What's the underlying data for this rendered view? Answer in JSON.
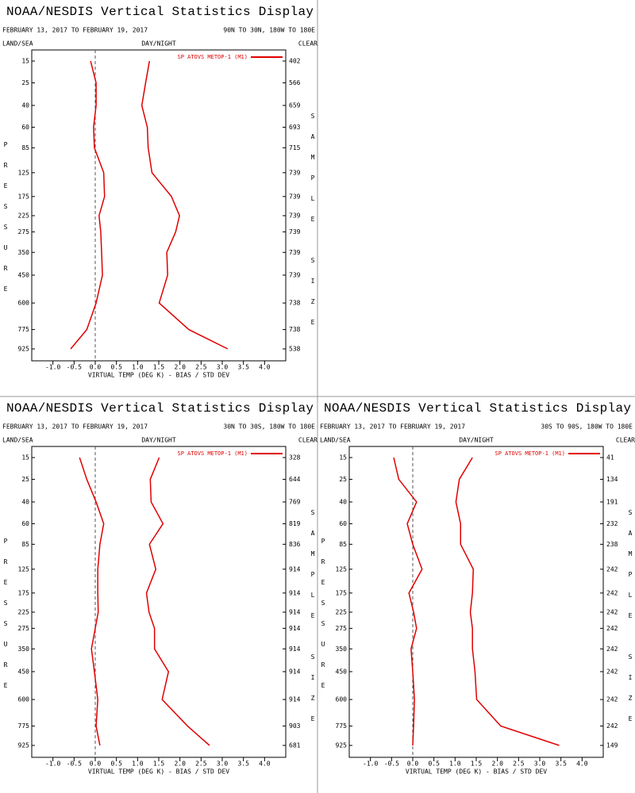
{
  "chart_data": [
    {
      "type": "profile",
      "title": "NOAA/NESDIS Vertical Statistics Display",
      "period": "FEBRUARY 13, 2017 TO FEBRUARY 19, 2017",
      "region": "90N TO 30N, 180W TO 180E",
      "land_sea": "LAND/SEA",
      "day_night": "DAY/NIGHT",
      "clear": "CLEAR",
      "legend": "SP ATOVS METOP-1 (M1)",
      "color": "#e00000",
      "y_label": "PRESSURE",
      "y2_label": "SAMPLE SIZE",
      "x_label": "VIRTUAL TEMP (DEG K) - BIAS / STD DEV",
      "levels": [
        15,
        25,
        40,
        60,
        85,
        125,
        175,
        225,
        275,
        350,
        450,
        600,
        775,
        925
      ],
      "sample_size": [
        402,
        566,
        659,
        693,
        715,
        739,
        739,
        739,
        739,
        739,
        739,
        738,
        738,
        538
      ],
      "bias": [
        -0.11,
        0.02,
        0.02,
        -0.04,
        -0.02,
        0.2,
        0.22,
        0.09,
        0.13,
        0.15,
        0.17,
        0.02,
        -0.2,
        -0.58
      ],
      "std_dev": [
        1.28,
        1.19,
        1.1,
        1.23,
        1.25,
        1.34,
        1.8,
        1.99,
        1.9,
        1.69,
        1.71,
        1.51,
        2.21,
        3.13
      ],
      "xlim": [
        -1.5,
        4.5
      ],
      "xticks": [
        {
          "value": -1.0,
          "label": "-1.0"
        },
        -0.5,
        {
          "value": 0,
          "label": "0.0"
        },
        0.5,
        {
          "value": 1,
          "label": "1.0"
        },
        1.5,
        {
          "value": 2,
          "label": "2.0"
        },
        2.5,
        {
          "value": 3,
          "label": "3.0"
        },
        3.5,
        {
          "value": 4,
          "label": "4.0"
        }
      ]
    },
    {
      "type": "profile",
      "title": "NOAA/NESDIS Vertical Statistics Display",
      "period": "FEBRUARY 13, 2017 TO FEBRUARY 19, 2017",
      "region": "30N TO 30S, 180W TO 180E",
      "land_sea": "LAND/SEA",
      "day_night": "DAY/NIGHT",
      "clear": "CLEAR",
      "legend": "SP ATOVS METOP-1 (M1)",
      "color": "#e00000",
      "y_label": "PRESSURE",
      "y2_label": "SAMPLE SIZE",
      "x_label": "VIRTUAL TEMP (DEG K) - BIAS / STD DEV",
      "levels": [
        15,
        25,
        40,
        60,
        85,
        125,
        175,
        225,
        275,
        350,
        450,
        600,
        775,
        925
      ],
      "sample_size": [
        328,
        644,
        769,
        819,
        836,
        914,
        914,
        914,
        914,
        914,
        914,
        914,
        903,
        681
      ],
      "bias": [
        -0.37,
        -0.2,
        0.02,
        0.2,
        0.11,
        0.06,
        0.06,
        0.07,
        0,
        -0.09,
        -0.02,
        0.06,
        0.02,
        0.11
      ],
      "std_dev": [
        1.51,
        1.3,
        1.32,
        1.6,
        1.28,
        1.43,
        1.21,
        1.27,
        1.4,
        1.4,
        1.73,
        1.58,
        2.18,
        2.7
      ],
      "xlim": [
        -1.5,
        4.5
      ],
      "xticks": [
        {
          "value": -1.0,
          "label": "-1.0"
        },
        -0.5,
        {
          "value": 0,
          "label": "0.0"
        },
        0.5,
        {
          "value": 1,
          "label": "1.0"
        },
        1.5,
        {
          "value": 2,
          "label": "2.0"
        },
        2.5,
        {
          "value": 3,
          "label": "3.0"
        },
        3.5,
        {
          "value": 4,
          "label": "4.0"
        }
      ]
    },
    {
      "type": "profile",
      "title": "NOAA/NESDIS Vertical Statistics Display",
      "period": "FEBRUARY 13, 2017 TO FEBRUARY 19, 2017",
      "region": "30S TO 90S, 180W TO 180E",
      "land_sea": "LAND/SEA",
      "day_night": "DAY/NIGHT",
      "clear": "CLEAR",
      "legend": "SP ATOVS METOP-1 (M1)",
      "color": "#e00000",
      "y_label": "PRESSURE",
      "y2_label": "SAMPLE SIZE",
      "x_label": "VIRTUAL TEMP (DEG K) - BIAS / STD DEV",
      "levels": [
        15,
        25,
        40,
        60,
        85,
        125,
        175,
        225,
        275,
        350,
        450,
        600,
        775,
        925
      ],
      "sample_size": [
        41,
        134,
        191,
        232,
        238,
        242,
        242,
        242,
        242,
        242,
        242,
        242,
        242,
        149
      ],
      "bias": [
        -0.45,
        -0.33,
        0.09,
        -0.13,
        0,
        0.22,
        -0.09,
        0.02,
        0.09,
        -0.04,
        0,
        0.04,
        0.02,
        0
      ],
      "std_dev": [
        1.41,
        1.1,
        1.02,
        1.13,
        1.13,
        1.43,
        1.41,
        1.36,
        1.41,
        1.41,
        1.47,
        1.51,
        2.08,
        3.46
      ],
      "xlim": [
        -1.5,
        4.5
      ],
      "xticks": [
        {
          "value": -1.0,
          "label": "-1.0"
        },
        -0.5,
        {
          "value": 0,
          "label": "0.0"
        },
        0.5,
        {
          "value": 1,
          "label": "1.0"
        },
        1.5,
        {
          "value": 2,
          "label": "2.0"
        },
        2.5,
        {
          "value": 3,
          "label": "3.0"
        },
        3.5,
        {
          "value": 4,
          "label": "4.0"
        }
      ]
    }
  ]
}
